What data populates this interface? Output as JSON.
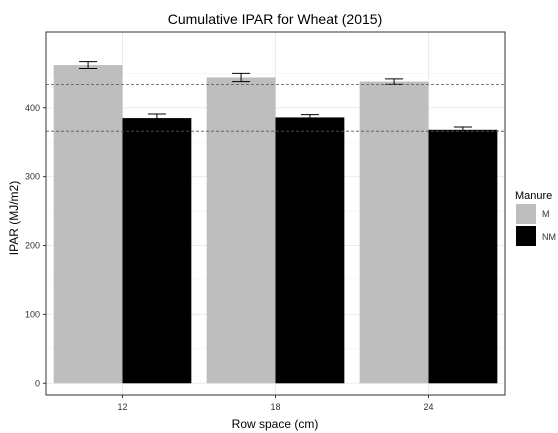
{
  "chart_data": {
    "type": "bar",
    "title": "Cumulative IPAR for Wheat (2015)",
    "xlabel": "Row space (cm)",
    "ylabel": "IPAR (MJ/m2)",
    "categories": [
      "12",
      "18",
      "24"
    ],
    "ylim": [
      -17,
      510
    ],
    "yticks": [
      0,
      100,
      200,
      300,
      400
    ],
    "grid": true,
    "legend": {
      "title": "Manure",
      "placement": "right"
    },
    "series": [
      {
        "name": "M",
        "color": "#bebebe",
        "values": [
          462,
          444,
          438
        ],
        "errors": [
          5,
          6,
          4
        ]
      },
      {
        "name": "NM",
        "color": "#000000",
        "values": [
          385,
          386,
          368
        ],
        "errors": [
          6,
          4,
          4
        ]
      }
    ],
    "reference_lines": [
      434,
      366
    ]
  }
}
